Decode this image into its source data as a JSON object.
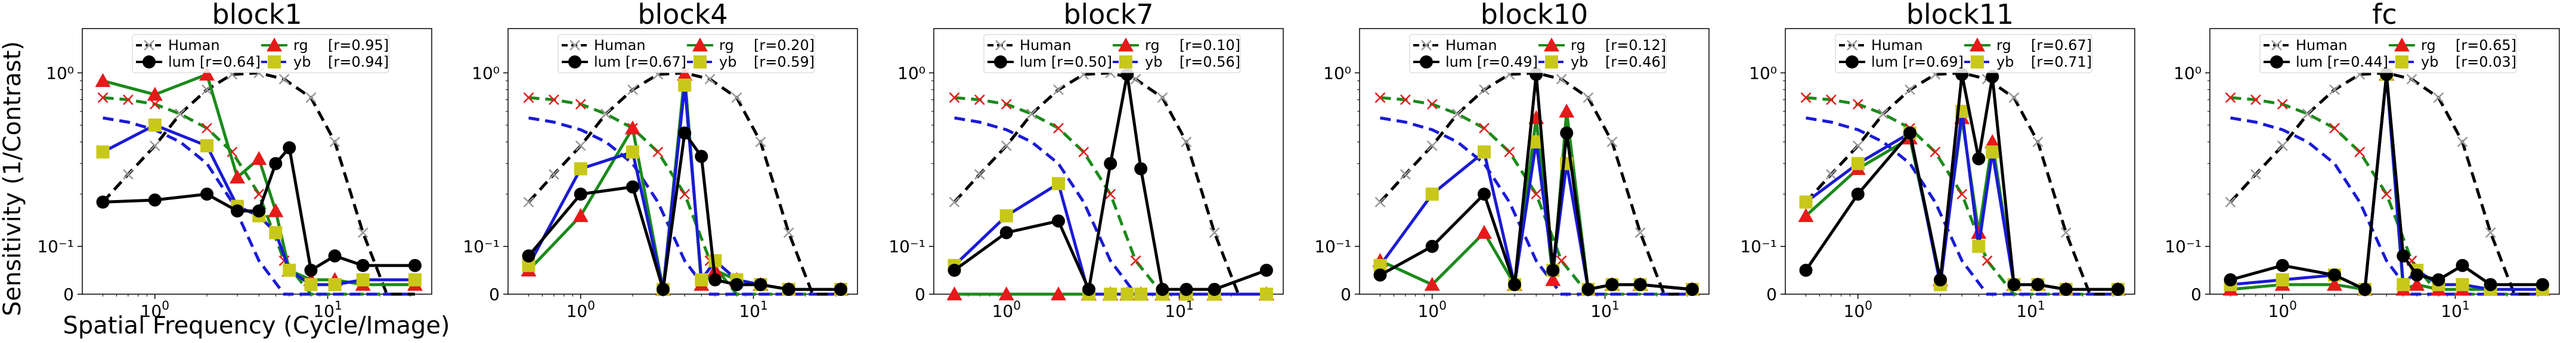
{
  "figure": {
    "ylabel": "Sensitivity (1/Contrast)",
    "xlabel": "Spatial Frequency (Cycle/Image)"
  },
  "colors": {
    "human": "#000000",
    "lum": "#000000",
    "rg": "#1a8a1a",
    "yb": "#1a1ad6",
    "rg_marker": "#e61a1a",
    "yb_marker": "#c8c81a",
    "human_marker": "#999999"
  },
  "human_curves": {
    "x": [
      0.5,
      0.7,
      1,
      1.4,
      2,
      2.8,
      4,
      5.6,
      8,
      11,
      16,
      22,
      32
    ],
    "lum": [
      0.18,
      0.26,
      0.38,
      0.58,
      0.8,
      0.98,
      1.0,
      0.92,
      0.72,
      0.4,
      0.12,
      0.0,
      0.0
    ],
    "rg": [
      0.72,
      0.7,
      0.66,
      0.58,
      0.48,
      0.35,
      0.2,
      0.07,
      0.0,
      0.0,
      0.0,
      0.0,
      0.0
    ],
    "yb": [
      0.55,
      0.52,
      0.47,
      0.4,
      0.3,
      0.18,
      0.07,
      0.0,
      0.0,
      0.0,
      0.0,
      0.0,
      0.0
    ]
  },
  "chart_data": [
    {
      "type": "line",
      "title": "block1",
      "x": [
        0.5,
        1,
        2,
        3,
        4,
        5,
        6,
        8,
        11,
        16,
        32
      ],
      "xscale": "log",
      "yscale": "symlog",
      "ylim": [
        0,
        1.8
      ],
      "yticks": [
        "0",
        "10⁻¹",
        "10⁰"
      ],
      "legend": {
        "human": "Human",
        "lum": "lum [r=0.64]",
        "rg": "rg",
        "rg_r": "[r=0.95]",
        "yb": "yb",
        "yb_r": "[r=0.94]"
      },
      "series": [
        {
          "key": "lum",
          "values": [
            0.18,
            0.185,
            0.2,
            0.16,
            0.16,
            0.3,
            0.37,
            0.05,
            0.08,
            0.06,
            0.06
          ]
        },
        {
          "key": "rg",
          "values": [
            0.9,
            0.75,
            0.98,
            0.25,
            0.32,
            0.16,
            0.05,
            0.03,
            0.03,
            0.02,
            0.02
          ]
        },
        {
          "key": "yb",
          "values": [
            0.35,
            0.5,
            0.38,
            0.17,
            0.15,
            0.12,
            0.05,
            0.02,
            0.02,
            0.03,
            0.03
          ]
        }
      ]
    },
    {
      "type": "line",
      "title": "block4",
      "x": [
        0.5,
        1,
        2,
        3,
        4,
        5,
        6,
        8,
        11,
        16,
        32
      ],
      "xscale": "log",
      "yscale": "symlog",
      "ylim": [
        0,
        1.8
      ],
      "yticks": [
        "0",
        "10⁻¹",
        "10⁰"
      ],
      "legend": {
        "human": "Human",
        "lum": "lum [r=0.67]",
        "rg": "rg",
        "rg_r": "[r=0.20]",
        "yb": "yb",
        "yb_r": "[r=0.59]"
      },
      "series": [
        {
          "key": "lum",
          "values": [
            0.08,
            0.2,
            0.22,
            0.01,
            0.45,
            0.33,
            0.03,
            0.02,
            0.02,
            0.01,
            0.01
          ]
        },
        {
          "key": "rg",
          "values": [
            0.05,
            0.15,
            0.48,
            0.01,
            0.98,
            0.02,
            0.05,
            0.03,
            0.02,
            0.01,
            0.01
          ]
        },
        {
          "key": "yb",
          "values": [
            0.06,
            0.28,
            0.35,
            0.01,
            0.85,
            0.03,
            0.07,
            0.03,
            0.02,
            0.01,
            0.01
          ]
        }
      ]
    },
    {
      "type": "line",
      "title": "block7",
      "x": [
        0.5,
        1,
        2,
        3,
        4,
        5,
        6,
        8,
        11,
        16,
        32
      ],
      "xscale": "log",
      "yscale": "symlog",
      "ylim": [
        0,
        1.8
      ],
      "yticks": [
        "0",
        "10⁻¹",
        "10⁰"
      ],
      "legend": {
        "human": "Human",
        "lum": "lum [r=0.50]",
        "rg": "rg",
        "rg_r": "[r=0.10]",
        "yb": "yb",
        "yb_r": "[r=0.56]"
      },
      "series": [
        {
          "key": "lum",
          "values": [
            0.05,
            0.12,
            0.14,
            0.01,
            0.3,
            0.98,
            0.28,
            0.01,
            0.01,
            0.01,
            0.05
          ]
        },
        {
          "key": "rg",
          "values": [
            0.0,
            0.0,
            0.0,
            0.0,
            0.0,
            0.0,
            0.0,
            0.0,
            0.0,
            0.0,
            0.0
          ]
        },
        {
          "key": "yb",
          "values": [
            0.06,
            0.15,
            0.23,
            0.0,
            0.0,
            0.0,
            0.0,
            0.0,
            0.0,
            0.0,
            0.0
          ]
        }
      ]
    },
    {
      "type": "line",
      "title": "block10",
      "x": [
        0.5,
        1,
        2,
        3,
        4,
        5,
        6,
        8,
        11,
        16,
        32
      ],
      "xscale": "log",
      "yscale": "symlog",
      "ylim": [
        0,
        1.8
      ],
      "yticks": [
        "0",
        "10⁻¹",
        "10⁰"
      ],
      "legend": {
        "human": "Human",
        "lum": "lum [r=0.49]",
        "rg": "rg",
        "rg_r": "[r=0.12]",
        "yb": "yb",
        "yb_r": "[r=0.46]"
      },
      "series": [
        {
          "key": "lum",
          "values": [
            0.04,
            0.1,
            0.2,
            0.02,
            0.98,
            0.05,
            0.45,
            0.01,
            0.02,
            0.02,
            0.01
          ]
        },
        {
          "key": "rg",
          "values": [
            0.07,
            0.02,
            0.12,
            0.02,
            0.55,
            0.03,
            0.6,
            0.01,
            0.02,
            0.02,
            0.01
          ]
        },
        {
          "key": "yb",
          "values": [
            0.06,
            0.2,
            0.35,
            0.02,
            0.4,
            0.05,
            0.3,
            0.01,
            0.02,
            0.02,
            0.01
          ]
        }
      ]
    },
    {
      "type": "line",
      "title": "block11",
      "x": [
        0.5,
        1,
        2,
        3,
        4,
        5,
        6,
        8,
        11,
        16,
        32
      ],
      "xscale": "log",
      "yscale": "symlog",
      "ylim": [
        0,
        1.8
      ],
      "yticks": [
        "0",
        "10⁻¹",
        "10⁰"
      ],
      "legend": {
        "human": "Human",
        "lum": "lum [r=0.69]",
        "rg": "rg",
        "rg_r": "[r=0.67]",
        "yb": "yb",
        "yb_r": "[r=0.71]"
      },
      "series": [
        {
          "key": "lum",
          "values": [
            0.05,
            0.2,
            0.45,
            0.03,
            0.98,
            0.32,
            0.95,
            0.02,
            0.02,
            0.01,
            0.01
          ]
        },
        {
          "key": "rg",
          "values": [
            0.15,
            0.28,
            0.42,
            0.03,
            0.55,
            0.12,
            0.4,
            0.02,
            0.02,
            0.01,
            0.01
          ]
        },
        {
          "key": "yb",
          "values": [
            0.18,
            0.3,
            0.45,
            0.02,
            0.6,
            0.1,
            0.35,
            0.02,
            0.02,
            0.01,
            0.01
          ]
        }
      ]
    },
    {
      "type": "line",
      "title": "fc",
      "x": [
        0.5,
        1,
        2,
        3,
        4,
        5,
        6,
        8,
        11,
        16,
        32
      ],
      "xscale": "log",
      "yscale": "symlog",
      "ylim": [
        0,
        1.8
      ],
      "yticks": [
        "0",
        "10⁻¹",
        "10⁰"
      ],
      "legend": {
        "human": "Human",
        "lum": "lum [r=0.44]",
        "rg": "rg",
        "rg_r": "[r=0.65]",
        "yb": "yb",
        "yb_r": "[r=0.03]"
      },
      "series": [
        {
          "key": "lum",
          "values": [
            0.03,
            0.06,
            0.04,
            0.01,
            0.98,
            0.08,
            0.04,
            0.03,
            0.06,
            0.02,
            0.02
          ]
        },
        {
          "key": "rg",
          "values": [
            0.01,
            0.02,
            0.02,
            0.01,
            0.98,
            0.01,
            0.02,
            0.01,
            0.01,
            0.01,
            0.01
          ]
        },
        {
          "key": "yb",
          "values": [
            0.02,
            0.03,
            0.04,
            0.01,
            0.98,
            0.02,
            0.05,
            0.02,
            0.02,
            0.01,
            0.01
          ]
        }
      ]
    }
  ]
}
